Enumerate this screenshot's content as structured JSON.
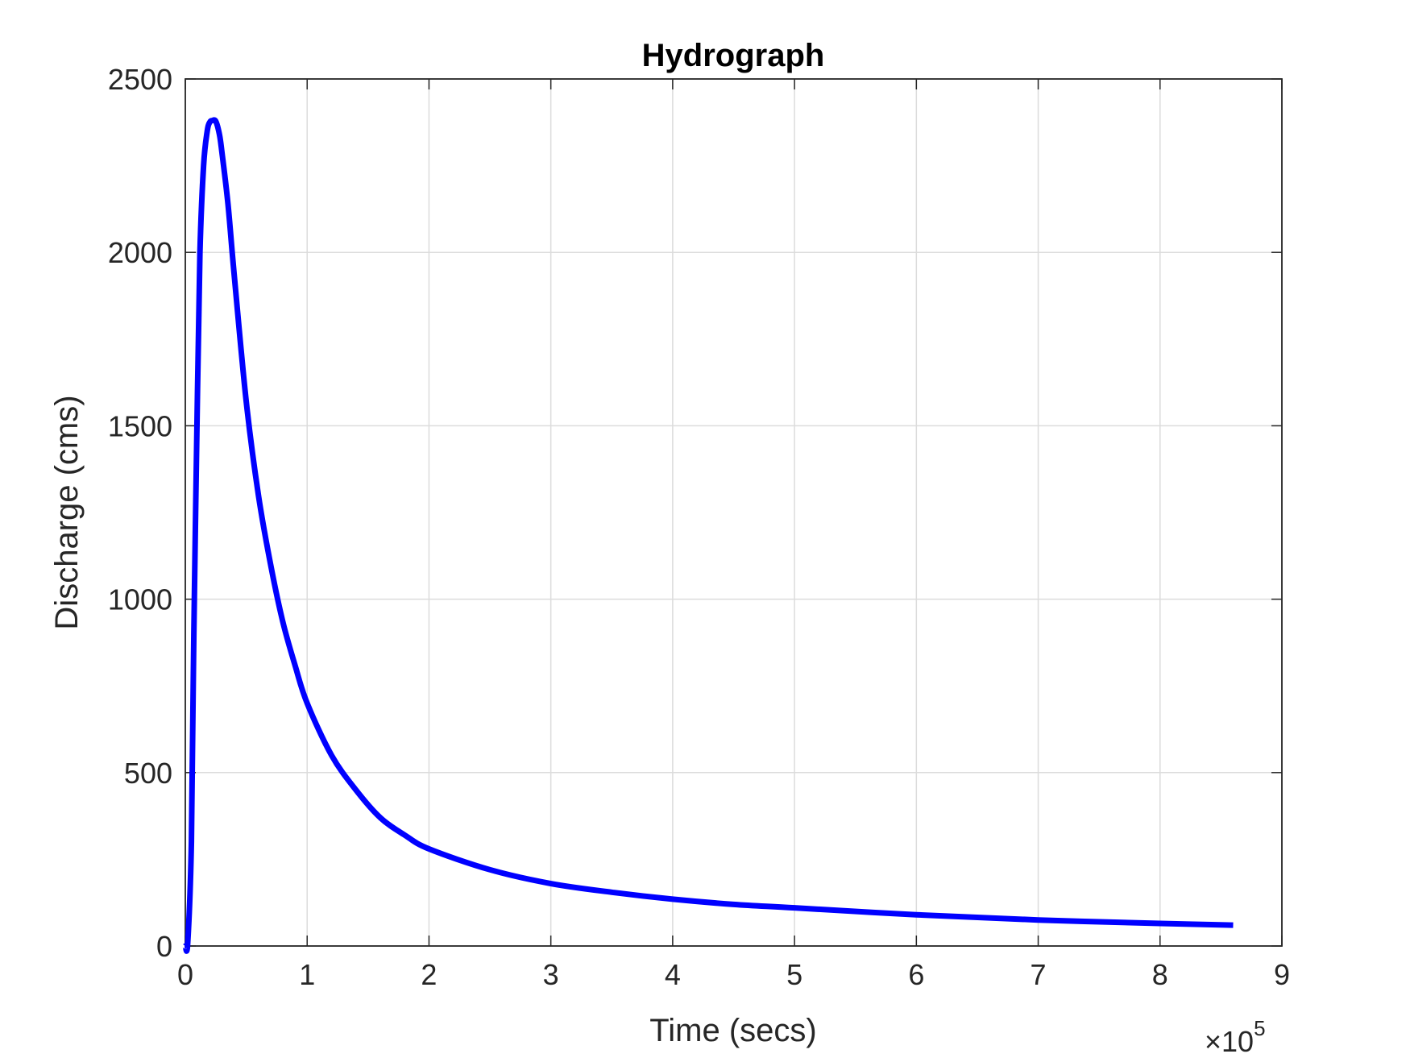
{
  "chart_data": {
    "type": "line",
    "title": "Hydrograph",
    "xlabel": "Time (secs)",
    "ylabel": "Discharge (cms)",
    "x_exponent_label": "×10",
    "x_exponent": "5",
    "xlim": [
      0,
      9
    ],
    "ylim": [
      0,
      2500
    ],
    "x_ticks": [
      "0",
      "1",
      "2",
      "3",
      "4",
      "5",
      "6",
      "7",
      "8",
      "9"
    ],
    "y_ticks": [
      "0",
      "500",
      "1000",
      "1500",
      "2000",
      "2500"
    ],
    "grid": true,
    "legend": "none",
    "series": [
      {
        "color": "#0000ff",
        "x": [
          0,
          0.02,
          0.05,
          0.07,
          0.1,
          0.12,
          0.15,
          0.18,
          0.2,
          0.22,
          0.25,
          0.28,
          0.3,
          0.35,
          0.4,
          0.5,
          0.6,
          0.7,
          0.8,
          0.9,
          1.0,
          1.2,
          1.4,
          1.6,
          1.8,
          2.0,
          2.5,
          3.0,
          3.5,
          4.0,
          4.5,
          5.0,
          6.0,
          7.0,
          8.0,
          8.6
        ],
        "values": [
          0,
          10,
          300,
          900,
          1600,
          2000,
          2250,
          2350,
          2375,
          2380,
          2378,
          2340,
          2290,
          2140,
          1940,
          1570,
          1300,
          1100,
          935,
          810,
          700,
          550,
          450,
          370,
          320,
          280,
          220,
          180,
          155,
          135,
          120,
          110,
          90,
          75,
          65,
          60
        ]
      }
    ]
  }
}
